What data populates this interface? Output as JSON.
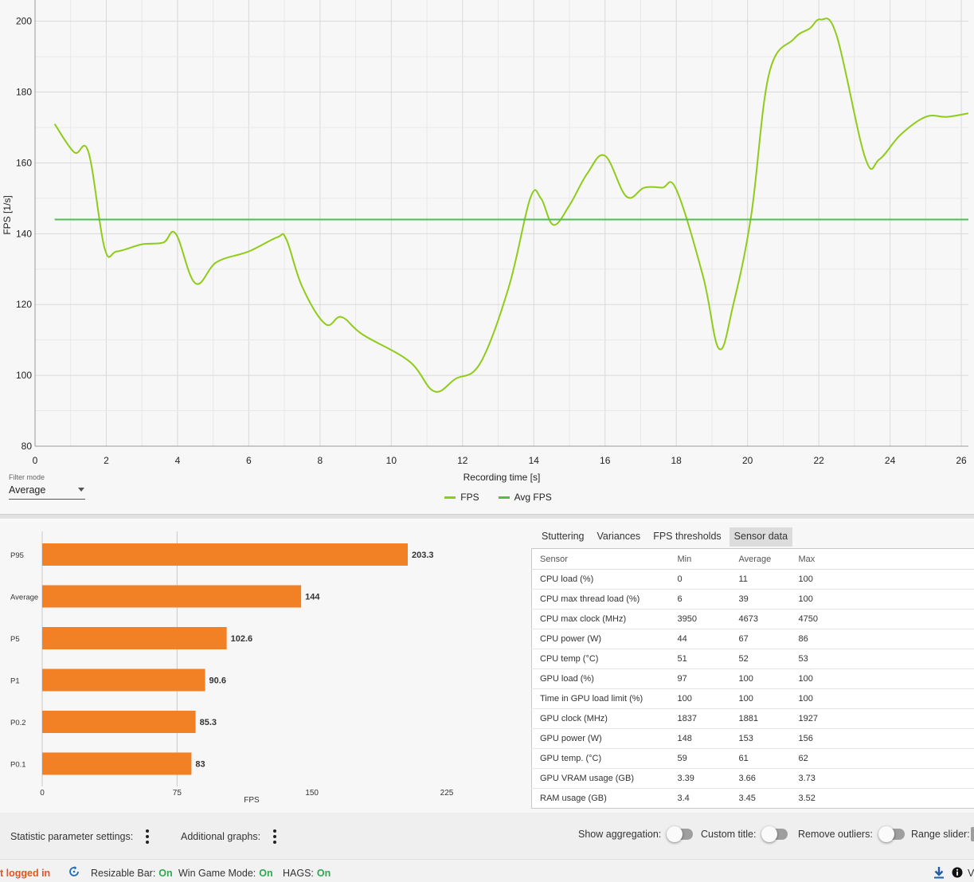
{
  "chart_data": [
    {
      "type": "line",
      "xlabel": "Recording time [s]",
      "ylabel": "FPS [1/s]",
      "xlim": [
        0,
        26.2
      ],
      "ylim": [
        80,
        206
      ],
      "x_ticks": [
        0,
        2,
        4,
        6,
        8,
        10,
        12,
        14,
        16,
        18,
        20,
        22,
        24,
        26
      ],
      "y_ticks": [
        80,
        100,
        120,
        140,
        160,
        180,
        200
      ],
      "grid": true,
      "legend_position": "bottom",
      "series": [
        {
          "name": "FPS",
          "color": "#8fcc1a",
          "points": [
            [
              0.55,
              171
            ],
            [
              1.1,
              163
            ],
            [
              1.5,
              163
            ],
            [
              1.95,
              136
            ],
            [
              2.3,
              135
            ],
            [
              3,
              137
            ],
            [
              3.6,
              137.5
            ],
            [
              3.95,
              140
            ],
            [
              4.5,
              126
            ],
            [
              5.1,
              132
            ],
            [
              6,
              135
            ],
            [
              6.8,
              139
            ],
            [
              7.05,
              138.5
            ],
            [
              7.5,
              125
            ],
            [
              8.15,
              114.5
            ],
            [
              8.6,
              116.5
            ],
            [
              9.2,
              111.5
            ],
            [
              10.5,
              104
            ],
            [
              11.2,
              95.5
            ],
            [
              11.8,
              99
            ],
            [
              12.5,
              103.5
            ],
            [
              13.3,
              125
            ],
            [
              13.9,
              150
            ],
            [
              14.2,
              150
            ],
            [
              14.55,
              142.5
            ],
            [
              15,
              148
            ],
            [
              15.5,
              157
            ],
            [
              16,
              162
            ],
            [
              16.6,
              150.5
            ],
            [
              17.1,
              153
            ],
            [
              17.6,
              153
            ],
            [
              18,
              152.5
            ],
            [
              18.75,
              128
            ],
            [
              19.2,
              107.5
            ],
            [
              19.6,
              120
            ],
            [
              20.1,
              145
            ],
            [
              20.6,
              185
            ],
            [
              21.3,
              195
            ],
            [
              21.75,
              198
            ],
            [
              22.05,
              200.5
            ],
            [
              22.5,
              196
            ],
            [
              23.3,
              161.5
            ],
            [
              23.7,
              161
            ],
            [
              24.3,
              168
            ],
            [
              25,
              173
            ],
            [
              25.6,
              173
            ],
            [
              26.2,
              174
            ]
          ]
        },
        {
          "name": "Avg FPS",
          "color": "#4cbf4f",
          "points": [
            [
              0.55,
              144
            ],
            [
              26.2,
              144
            ]
          ]
        }
      ]
    },
    {
      "type": "bar",
      "orientation": "horizontal",
      "xlabel": "FPS",
      "xlim": [
        0,
        225
      ],
      "x_ticks": [
        0,
        75,
        150,
        225
      ],
      "bar_color": "#f28024",
      "categories": [
        "P95",
        "Average",
        "P5",
        "P1",
        "P0.2",
        "P0.1"
      ],
      "values": [
        203.3,
        144,
        102.6,
        90.6,
        85.3,
        83
      ],
      "value_labels": [
        "203.3",
        "144",
        "102.6",
        "90.6",
        "85.3",
        "83"
      ]
    }
  ],
  "filter_mode": {
    "label": "Filter mode",
    "value": "Average"
  },
  "tabs": [
    "Stuttering",
    "Variances",
    "FPS thresholds",
    "Sensor data"
  ],
  "active_tab": "Sensor data",
  "sensor_table": {
    "headers": [
      "Sensor",
      "Min",
      "Average",
      "Max"
    ],
    "rows": [
      [
        "CPU load (%)",
        "0",
        "11",
        "100"
      ],
      [
        "CPU max thread load (%)",
        "6",
        "39",
        "100"
      ],
      [
        "CPU max clock (MHz)",
        "3950",
        "4673",
        "4750"
      ],
      [
        "CPU power (W)",
        "44",
        "67",
        "86"
      ],
      [
        "CPU temp (°C)",
        "51",
        "52",
        "53"
      ],
      [
        "GPU load (%)",
        "97",
        "100",
        "100"
      ],
      [
        "Time in GPU load limit (%)",
        "100",
        "100",
        "100"
      ],
      [
        "GPU clock (MHz)",
        "1837",
        "1881",
        "1927"
      ],
      [
        "GPU power (W)",
        "148",
        "153",
        "156"
      ],
      [
        "GPU temp. (°C)",
        "59",
        "61",
        "62"
      ],
      [
        "GPU VRAM usage (GB)",
        "3.39",
        "3.66",
        "3.73"
      ],
      [
        "RAM usage (GB)",
        "3.4",
        "3.45",
        "3.52"
      ]
    ]
  },
  "settings": {
    "statistic_parameter_settings": "Statistic parameter settings:",
    "additional_graphs": "Additional graphs:",
    "show_aggregation": "Show aggregation:",
    "custom_title": "Custom title:",
    "remove_outliers": "Remove outliers:",
    "range_slider": "Range slider:"
  },
  "status": {
    "login": "t logged in",
    "resizable_bar_label": "Resizable Bar:",
    "resizable_bar_value": "On",
    "win_game_mode_label": "Win Game Mode:",
    "win_game_mode_value": "On",
    "hags_label": "HAGS:",
    "hags_value": "On",
    "trailing_text": "V"
  },
  "icons": [
    "refresh-icon",
    "download-icon",
    "info-icon",
    "kebab-menu-icon"
  ]
}
